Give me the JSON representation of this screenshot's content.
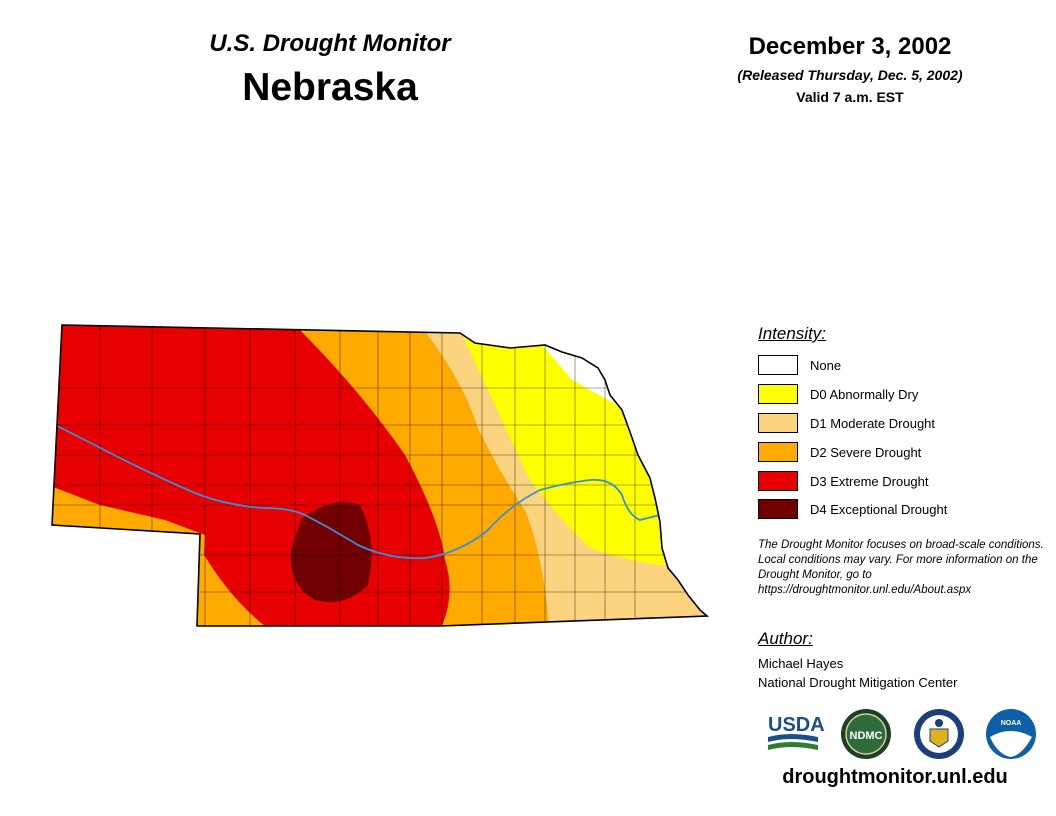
{
  "header": {
    "subtitle": "U.S. Drought Monitor",
    "state": "Nebraska",
    "date": "December 3, 2002",
    "released": "(Released Thursday, Dec. 5, 2002)",
    "valid": "Valid 7 a.m. EST"
  },
  "legend": {
    "title": "Intensity:",
    "items": [
      {
        "label": "None",
        "color": "#ffffff"
      },
      {
        "label": "D0 Abnormally Dry",
        "color": "#ffff00"
      },
      {
        "label": "D1 Moderate Drought",
        "color": "#fcd37f"
      },
      {
        "label": "D2 Severe Drought",
        "color": "#ffaa00"
      },
      {
        "label": "D3 Extreme Drought",
        "color": "#e60000"
      },
      {
        "label": "D4 Exceptional Drought",
        "color": "#730000"
      }
    ]
  },
  "note": "The Drought Monitor focuses on broad-scale conditions. Local conditions may vary. For more information on the Drought Monitor, go to https://droughtmonitor.unl.edu/About.aspx",
  "author": {
    "title": "Author:",
    "name": "Michael Hayes",
    "org": "National Drought Mitigation Center"
  },
  "logos": [
    {
      "name": "usda-logo",
      "text": "USDA",
      "color": "#1a4f8b"
    },
    {
      "name": "ndmc-logo",
      "text": "NDMC",
      "color": "#2e6b3a"
    },
    {
      "name": "commerce-logo",
      "text": "",
      "color": "#1a3f7a"
    },
    {
      "name": "noaa-logo",
      "text": "NOAA",
      "color": "#0f5fa8"
    }
  ],
  "site_url": "droughtmonitor.unl.edu",
  "colors": {
    "river": "#3a8fd9",
    "border": "#000000"
  }
}
